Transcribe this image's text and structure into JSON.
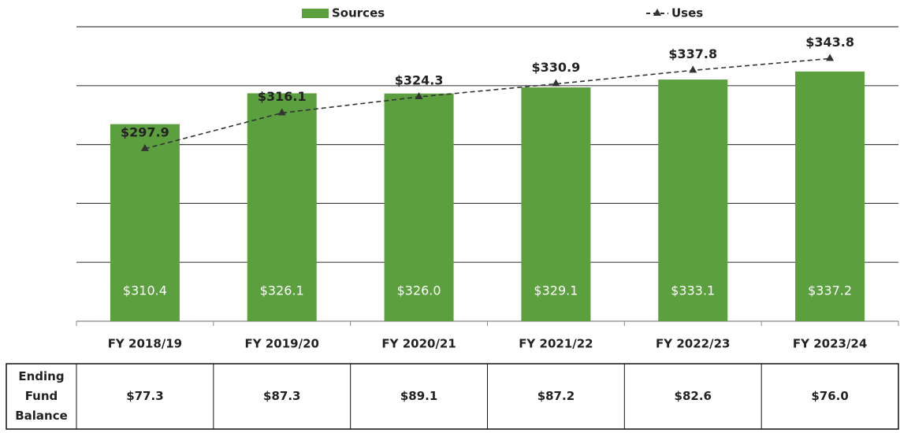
{
  "chart_data": {
    "type": "bar_line",
    "categories": [
      "FY 2018/19",
      "FY 2019/20",
      "FY 2020/21",
      "FY 2021/22",
      "FY 2022/23",
      "FY 2023/24"
    ],
    "series": [
      {
        "name": "Sources",
        "type": "bar",
        "color": "#5b9f3e",
        "values": [
          310.4,
          326.1,
          326.0,
          329.1,
          333.1,
          337.2
        ],
        "value_labels": [
          "$310.4",
          "$326.1",
          "$326.0",
          "$329.1",
          "$333.1",
          "$337.2"
        ]
      },
      {
        "name": "Uses",
        "type": "line",
        "color": "#333333",
        "values": [
          297.9,
          316.1,
          324.3,
          330.9,
          337.8,
          343.8
        ],
        "value_labels": [
          "$297.9",
          "$316.1",
          "$324.3",
          "$330.9",
          "$337.8",
          "$343.8"
        ]
      }
    ],
    "ylim": [
      210,
      360
    ],
    "yticks": [
      210,
      240,
      270,
      300,
      330,
      360
    ],
    "grid": true,
    "legend": "top"
  },
  "table": {
    "header": "Ending Fund Balance",
    "cells": [
      "$77.3",
      "$87.3",
      "$89.1",
      "$87.2",
      "$82.6",
      "$76.0"
    ]
  }
}
